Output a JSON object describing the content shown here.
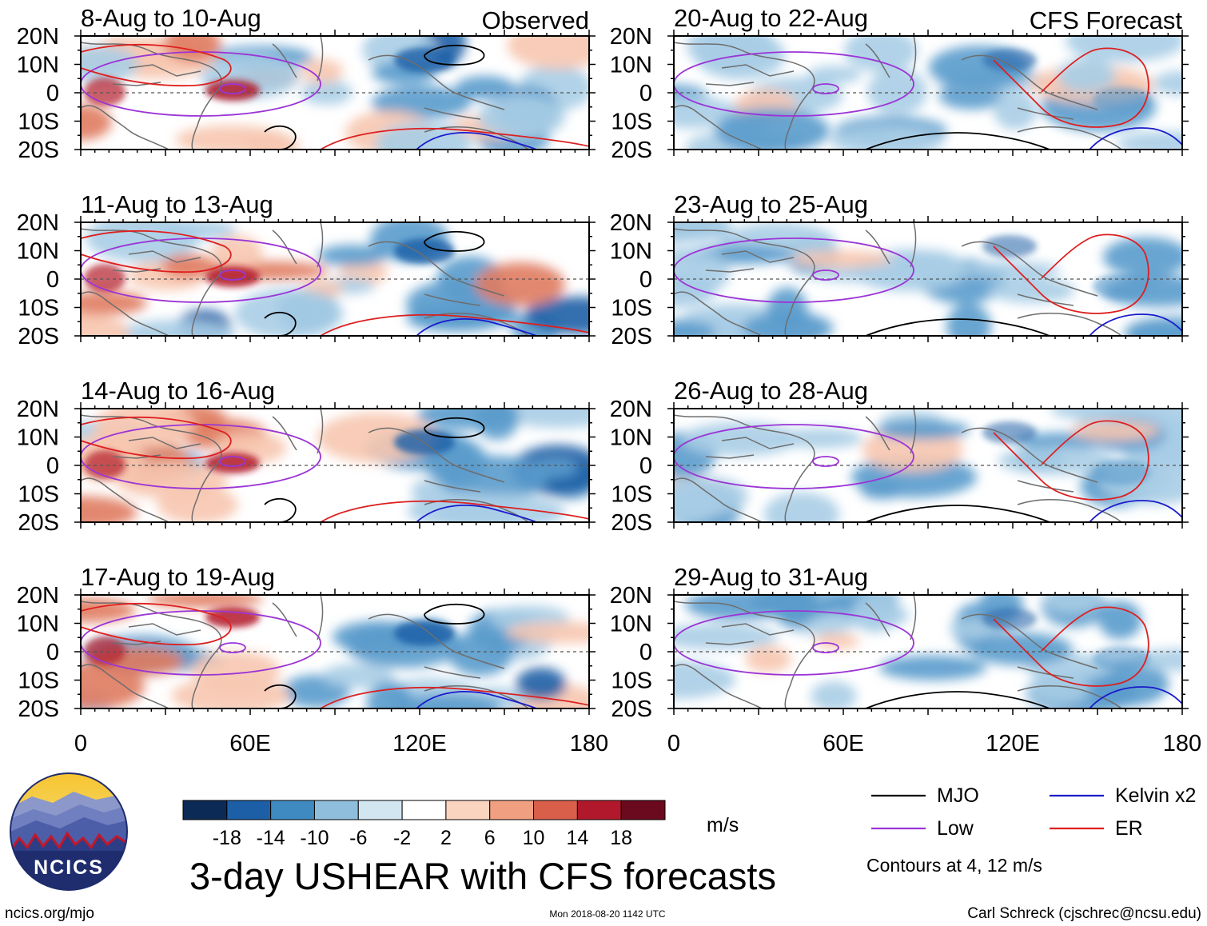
{
  "figure": {
    "title": "3-day USHEAR with CFS forecasts",
    "observed_label": "Observed",
    "forecast_label": "CFS Forecast",
    "footer_left": "ncics.org/mjo",
    "footer_center": "Mon 2018-08-20 1142 UTC",
    "footer_right": "Carl Schreck (cjschrec@ncsu.edu)",
    "logo_text": "NCICS"
  },
  "axes": {
    "lat_labels": [
      "20N",
      "10N",
      "0",
      "10S",
      "20S"
    ],
    "lon_labels": [
      "0",
      "60E",
      "120E",
      "180"
    ]
  },
  "panels": {
    "observed": [
      "8-Aug to 10-Aug",
      "11-Aug to 13-Aug",
      "14-Aug to 16-Aug",
      "17-Aug to 19-Aug"
    ],
    "forecast": [
      "20-Aug to 22-Aug",
      "23-Aug to 25-Aug",
      "26-Aug to 28-Aug",
      "29-Aug to 31-Aug"
    ]
  },
  "colorbar": {
    "unit": "m/s",
    "ticks": [
      "-18",
      "-14",
      "-10",
      "-6",
      "-2",
      "2",
      "6",
      "10",
      "14",
      "18"
    ],
    "colors": [
      "#0b2a55",
      "#1d5fa6",
      "#3f8ac0",
      "#8fbedd",
      "#d2e6f2",
      "#ffffff",
      "#fbd4c0",
      "#f0a080",
      "#d95f4b",
      "#b2182b",
      "#6b0a1e"
    ]
  },
  "legend": {
    "items": [
      {
        "label": "MJO",
        "color": "#000000"
      },
      {
        "label": "Kelvin x2",
        "color": "#1a1acc"
      },
      {
        "label": "Low",
        "color": "#9b35d6"
      },
      {
        "label": "ER",
        "color": "#dd1f1f"
      }
    ],
    "note": "Contours at 4, 12 m/s"
  },
  "map_colors": {
    "strong_negative": "#1d5fa6",
    "negative": "#5a9bcc",
    "weak_negative": "#a9cde6",
    "weak_positive": "#f7c7b0",
    "positive": "#e07b60",
    "strong_positive": "#b2182b",
    "coast": "#6e6e6e"
  }
}
